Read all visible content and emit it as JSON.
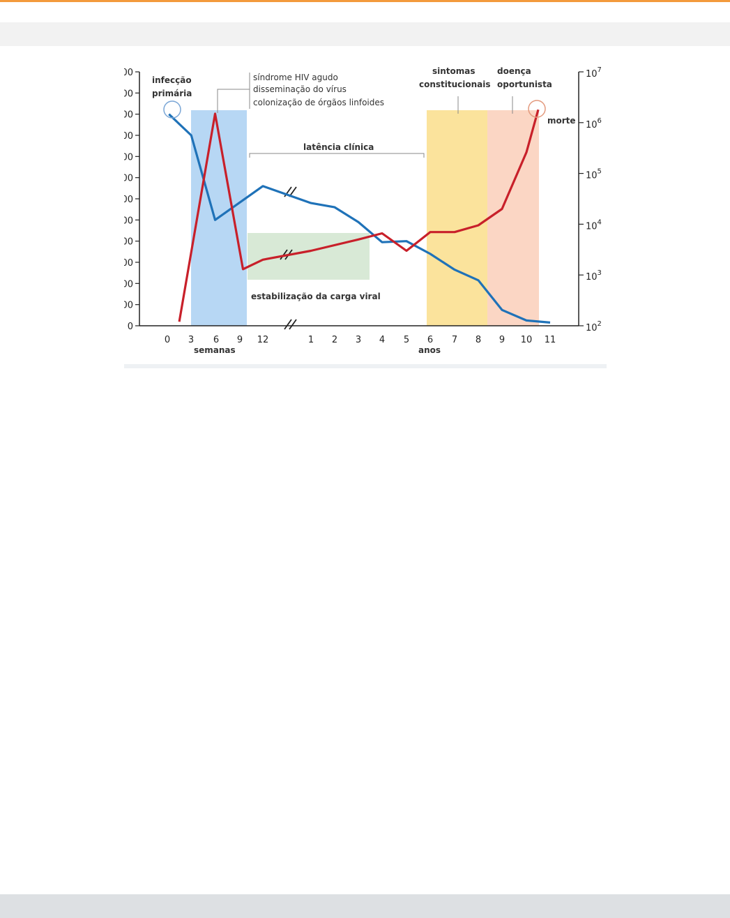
{
  "colors": {
    "accent": "#f39a3c",
    "cd4_line": "#1f72b8",
    "viral_line": "#c8202a",
    "acute_band": "#b7d7f4",
    "stabilization_band": "#d8e9d6",
    "symptoms_band": "#fbe39c",
    "opportunistic_band": "#fbd6c4"
  },
  "chart_data": {
    "type": "line",
    "x_ticks_weeks": [
      "0",
      "3",
      "6",
      "9",
      "12"
    ],
    "x_ticks_years": [
      "1",
      "2",
      "3",
      "4",
      "5",
      "6",
      "7",
      "8",
      "9",
      "10",
      "11"
    ],
    "x_unit_weeks": "semanas",
    "x_unit_years": "anos",
    "y_left_ticks": [
      "00",
      "00",
      "00",
      "00",
      "00",
      "00",
      "00",
      "00",
      "00",
      "00",
      "00",
      "00",
      "0"
    ],
    "y_right_ticks": [
      {
        "base": "10",
        "exp": "7"
      },
      {
        "base": "10",
        "exp": "6"
      },
      {
        "base": "10",
        "exp": "5"
      },
      {
        "base": "10",
        "exp": "4"
      },
      {
        "base": "10",
        "exp": "3"
      },
      {
        "base": "10",
        "exp": "2"
      }
    ],
    "y_right_scale": "log",
    "y_right_range": [
      100,
      10000000
    ],
    "annotations": {
      "primary_infection": [
        "infecção",
        "primária"
      ],
      "acute": [
        "síndrome HIV agudo",
        "disseminação do vírus",
        "colonização de órgãos linfoides"
      ],
      "latency": "latência clínica",
      "stabilization": "estabilização da carga viral",
      "symptoms": [
        "sintomas",
        "constitucionais"
      ],
      "opportunistic": [
        "doença",
        "oportunista"
      ],
      "death": "morte"
    },
    "series": [
      {
        "color": "#1f72b8",
        "axis": "left",
        "points": [
          {
            "t": "0.2 semanas",
            "v": 1000
          },
          {
            "t": "3 semanas",
            "v": 900
          },
          {
            "t": "6 semanas",
            "v": 500
          },
          {
            "t": "12 semanas",
            "v": 660
          },
          {
            "t": "1 ano",
            "v": 580
          },
          {
            "t": "2 anos",
            "v": 560
          },
          {
            "t": "3 anos",
            "v": 490
          },
          {
            "t": "4 anos",
            "v": 395
          },
          {
            "t": "5 anos",
            "v": 400
          },
          {
            "t": "6 anos",
            "v": 340
          },
          {
            "t": "7 anos",
            "v": 265
          },
          {
            "t": "8 anos",
            "v": 215
          },
          {
            "t": "9 anos",
            "v": 75
          },
          {
            "t": "10 anos",
            "v": 25
          },
          {
            "t": "11 anos",
            "v": 15
          }
        ]
      },
      {
        "color": "#c8202a",
        "axis": "right",
        "points": [
          {
            "t": "1.5 semanas",
            "v": 120
          },
          {
            "t": "6 semanas",
            "v": 1500000
          },
          {
            "t": "9.5 semanas",
            "v": 1300
          },
          {
            "t": "12 semanas",
            "v": 2000
          },
          {
            "t": "1 ano",
            "v": 3000
          },
          {
            "t": "3 anos",
            "v": 5000
          },
          {
            "t": "4 anos",
            "v": 6600
          },
          {
            "t": "5 anos",
            "v": 3000
          },
          {
            "t": "6 anos",
            "v": 7000
          },
          {
            "t": "7 anos",
            "v": 7000
          },
          {
            "t": "8 anos",
            "v": 9500
          },
          {
            "t": "9 anos",
            "v": 20000
          },
          {
            "t": "10 anos",
            "v": 260000
          },
          {
            "t": "10.5 anos",
            "v": 1800000
          }
        ]
      }
    ]
  }
}
